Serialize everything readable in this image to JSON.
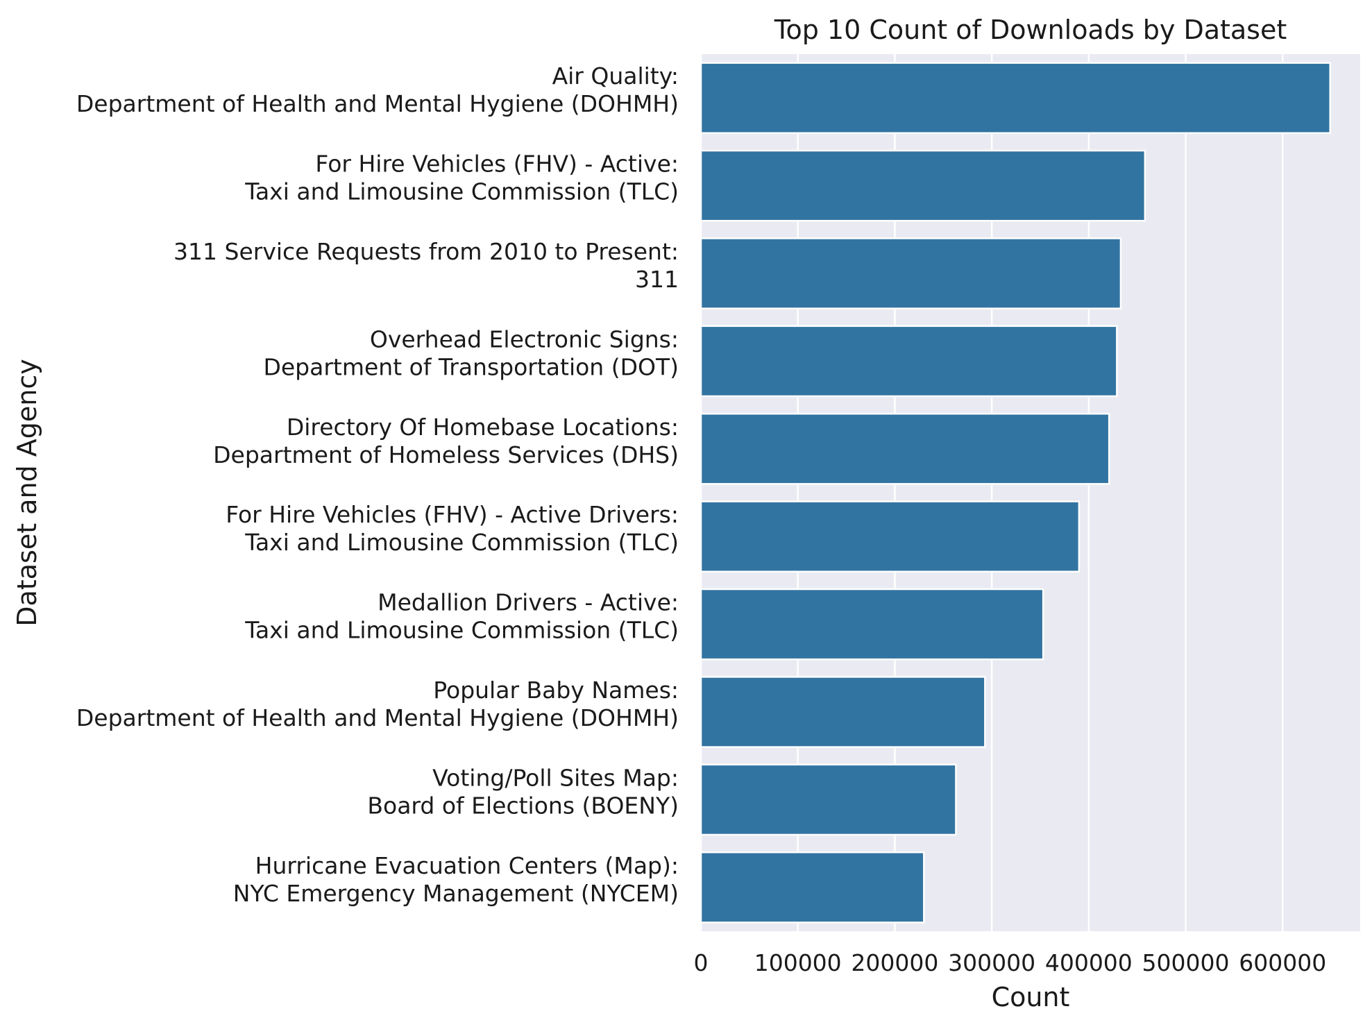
{
  "chart_data": {
    "type": "bar",
    "orientation": "horizontal",
    "title": "Top 10 Count of Downloads by Dataset",
    "xlabel": "Count",
    "ylabel": "Dataset and Agency",
    "xlim": [
      0,
      680000
    ],
    "xticks": [
      "0",
      "100000",
      "200000",
      "300000",
      "400000",
      "500000",
      "600000"
    ],
    "grid": true,
    "bar_color": "#3274a1",
    "background_color": "#eaeaf2",
    "categories": [
      [
        "Air Quality:",
        "Department of Health and Mental Hygiene (DOHMH)"
      ],
      [
        "For Hire Vehicles (FHV) - Active:",
        "Taxi and Limousine Commission (TLC)"
      ],
      [
        "311 Service Requests from 2010 to Present:",
        "311"
      ],
      [
        "Overhead Electronic Signs:",
        "Department of Transportation (DOT)"
      ],
      [
        "Directory Of Homebase Locations:",
        "Department of Homeless Services (DHS)"
      ],
      [
        "For Hire Vehicles (FHV) - Active Drivers:",
        "Taxi and Limousine Commission (TLC)"
      ],
      [
        "Medallion Drivers - Active:",
        "Taxi and Limousine Commission (TLC)"
      ],
      [
        "Popular Baby Names:",
        "Department of Health and Mental Hygiene (DOHMH)"
      ],
      [
        "Voting/Poll Sites Map:",
        "Board of Elections (BOENY)"
      ],
      [
        "Hurricane Evacuation Centers (Map):",
        "NYC Emergency Management (NYCEM)"
      ]
    ],
    "values": [
      649000,
      458000,
      433000,
      429000,
      421000,
      390000,
      353000,
      293000,
      263000,
      230000
    ]
  }
}
